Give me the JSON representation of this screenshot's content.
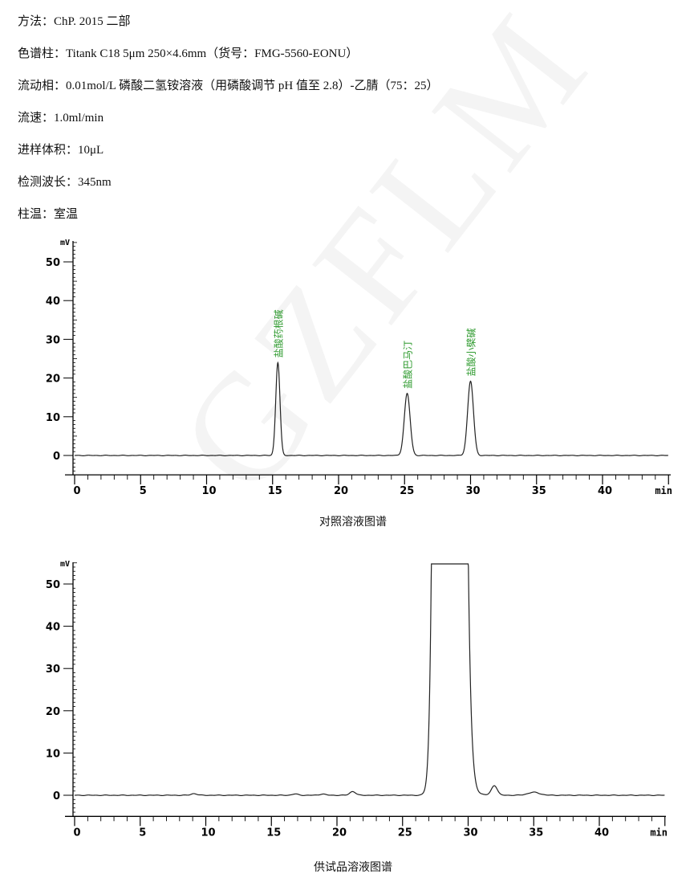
{
  "method": [
    {
      "label": "方法：",
      "value": "ChP. 2015  二部"
    },
    {
      "label": "色谱柱：",
      "value": "Titank C18 5μm 250×4.6mm（货号：FMG-5560-EONU）"
    },
    {
      "label": "流动相：",
      "value": "0.01mol/L 磷酸二氢铵溶液（用磷酸调节 pH 值至 2.8）-乙腈（75：25）"
    },
    {
      "label": "流速：",
      "value": "1.0ml/min"
    },
    {
      "label": "进样体积：",
      "value": "10μL"
    },
    {
      "label": "检测波长：",
      "value": "345nm"
    },
    {
      "label": "柱温：",
      "value": "室温"
    }
  ],
  "watermark": "GZFLM",
  "chart_data": [
    {
      "type": "line",
      "caption": "对照溶液图谱",
      "ylabel": "mV",
      "xlabel": "min",
      "xlim": [
        0,
        45
      ],
      "ylim": [
        -5,
        55
      ],
      "xticks": [
        "0",
        "5",
        "10",
        "15",
        "20",
        "25",
        "30",
        "35",
        "40"
      ],
      "yticks": [
        "0",
        "10",
        "20",
        "30",
        "40",
        "50"
      ],
      "line_color": "#222222",
      "label_color": "#2e9a2e",
      "peaks": [
        {
          "rt": 15.4,
          "height": 24,
          "name": "盐酸药根碱"
        },
        {
          "rt": 25.2,
          "height": 16,
          "name": "盐酸巴马汀"
        },
        {
          "rt": 30.0,
          "height": 19.2,
          "name": "盐酸小檗碱"
        }
      ]
    },
    {
      "type": "line",
      "caption": "供试品溶液图谱",
      "ylabel": "mV",
      "xlabel": "min",
      "xlim": [
        0,
        45
      ],
      "ylim": [
        -5,
        55
      ],
      "xticks": [
        "0",
        "5",
        "10",
        "15",
        "20",
        "25",
        "30",
        "35",
        "40"
      ],
      "yticks": [
        "0",
        "10",
        "20",
        "30",
        "40",
        "50"
      ],
      "line_color": "#222222",
      "peaks": [
        {
          "rt": 9.1,
          "height": 0.4
        },
        {
          "rt": 16.8,
          "height": 0.3
        },
        {
          "rt": 18.9,
          "height": 0.3
        },
        {
          "rt": 21.2,
          "height": 0.9
        },
        {
          "rt": 28.4,
          "height": "off-scale (>55)",
          "start": 26.8,
          "end": 30.8
        },
        {
          "rt": 32.0,
          "height": 2.3
        },
        {
          "rt": 35.0,
          "height": 0.7
        }
      ]
    }
  ]
}
